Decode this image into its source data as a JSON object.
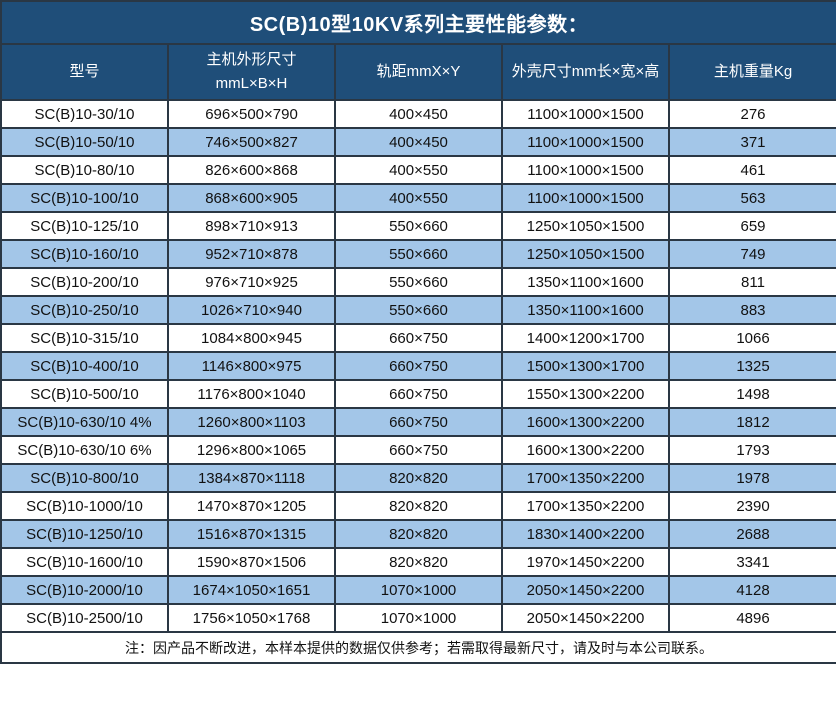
{
  "title": "SC(B)10型10KV系列主要性能参数：",
  "table": {
    "columns": [
      {
        "label": "型号"
      },
      {
        "label": "主机外形尺寸",
        "sublabel": "mmL×B×H"
      },
      {
        "label": "轨距mmX×Y"
      },
      {
        "label": "外壳尺寸mm长×宽×高"
      },
      {
        "label": "主机重量Kg"
      }
    ],
    "rows": [
      [
        "SC(B)10-30/10",
        "696×500×790",
        "400×450",
        "1100×1000×1500",
        "276"
      ],
      [
        "SC(B)10-50/10",
        "746×500×827",
        "400×450",
        "1100×1000×1500",
        "371"
      ],
      [
        "SC(B)10-80/10",
        "826×600×868",
        "400×550",
        "1100×1000×1500",
        "461"
      ],
      [
        "SC(B)10-100/10",
        "868×600×905",
        "400×550",
        "1100×1000×1500",
        "563"
      ],
      [
        "SC(B)10-125/10",
        "898×710×913",
        "550×660",
        "1250×1050×1500",
        "659"
      ],
      [
        "SC(B)10-160/10",
        "952×710×878",
        "550×660",
        "1250×1050×1500",
        "749"
      ],
      [
        "SC(B)10-200/10",
        "976×710×925",
        "550×660",
        "1350×1100×1600",
        "811"
      ],
      [
        "SC(B)10-250/10",
        "1026×710×940",
        "550×660",
        "1350×1100×1600",
        "883"
      ],
      [
        "SC(B)10-315/10",
        "1084×800×945",
        "660×750",
        "1400×1200×1700",
        "1066"
      ],
      [
        "SC(B)10-400/10",
        "1146×800×975",
        "660×750",
        "1500×1300×1700",
        "1325"
      ],
      [
        "SC(B)10-500/10",
        "1176×800×1040",
        "660×750",
        "1550×1300×2200",
        "1498"
      ],
      [
        "SC(B)10-630/10 4%",
        "1260×800×1103",
        "660×750",
        "1600×1300×2200",
        "1812"
      ],
      [
        "SC(B)10-630/10 6%",
        "1296×800×1065",
        "660×750",
        "1600×1300×2200",
        "1793"
      ],
      [
        "SC(B)10-800/10",
        "1384×870×1118",
        "820×820",
        "1700×1350×2200",
        "1978"
      ],
      [
        "SC(B)10-1000/10",
        "1470×870×1205",
        "820×820",
        "1700×1350×2200",
        "2390"
      ],
      [
        "SC(B)10-1250/10",
        "1516×870×1315",
        "820×820",
        "1830×1400×2200",
        "2688"
      ],
      [
        "SC(B)10-1600/10",
        "1590×870×1506",
        "820×820",
        "1970×1450×2200",
        "3341"
      ],
      [
        "SC(B)10-2000/10",
        "1674×1050×1651",
        "1070×1000",
        "2050×1450×2200",
        "4128"
      ],
      [
        "SC(B)10-2500/10",
        "1756×1050×1768",
        "1070×1000",
        "2050×1450×2200",
        "4896"
      ]
    ],
    "cell_names": [
      "cell-model",
      "cell-body-dimensions",
      "cell-rail-gauge",
      "cell-enclosure-dimensions",
      "cell-weight"
    ]
  },
  "note": "注：因产品不断改进，本样本提供的数据仅供参考；若需取得最新尺寸，请及时与本公司联系。",
  "colors": {
    "header_bg": "#1F4E79",
    "header_text": "#FFFFFF",
    "row_bg": "#FFFFFF",
    "row_alt_bg": "#A3C6E8",
    "border": "#2A3744",
    "body_text": "#111111"
  }
}
